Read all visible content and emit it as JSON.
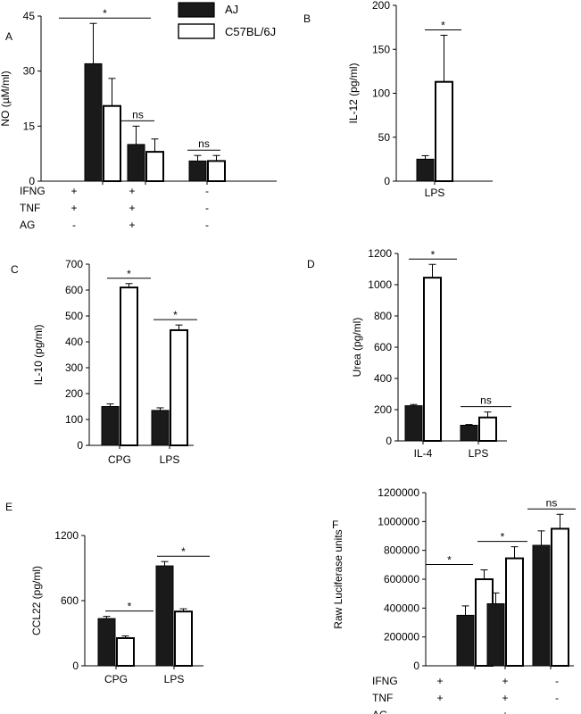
{
  "legend": {
    "items": [
      {
        "label": "AJ",
        "color": "#1a1a1a"
      },
      {
        "label": "C57BL/6J",
        "color": "#ffffff"
      }
    ]
  },
  "chart_data": [
    {
      "panel": "A",
      "type": "bar",
      "ylabel": "NO (µM/ml)",
      "ylim": [
        0,
        45
      ],
      "yticks": [
        "0",
        "15",
        "30",
        "45"
      ],
      "categories": [
        "",
        "",
        ""
      ],
      "series": [
        {
          "name": "AJ",
          "values": [
            32,
            10,
            5.5
          ],
          "errors": [
            11,
            5,
            1.5
          ]
        },
        {
          "name": "C57BL/6J",
          "values": [
            20.5,
            8,
            5.5
          ],
          "errors": [
            7.5,
            3.5,
            1.5
          ]
        }
      ],
      "significance": [
        "*",
        "ns",
        "ns"
      ],
      "treatment_rows": [
        {
          "label": "IFNG",
          "values": [
            "+",
            "+",
            "-"
          ]
        },
        {
          "label": "TNF",
          "values": [
            "+",
            "+",
            "-"
          ]
        },
        {
          "label": "AG",
          "values": [
            "-",
            "+",
            "-"
          ]
        }
      ]
    },
    {
      "panel": "B",
      "type": "bar",
      "ylabel": "IL-12 (pg/ml)",
      "ylim": [
        0,
        200
      ],
      "yticks": [
        "0",
        "50",
        "100",
        "150",
        "200"
      ],
      "categories": [
        "LPS"
      ],
      "series": [
        {
          "name": "AJ",
          "values": [
            25
          ],
          "errors": [
            4
          ]
        },
        {
          "name": "C57BL/6J",
          "values": [
            113
          ],
          "errors": [
            53
          ]
        }
      ],
      "significance": [
        "*"
      ]
    },
    {
      "panel": "C",
      "type": "bar",
      "ylabel": "IL-10 (pg/ml)",
      "ylim": [
        0,
        700
      ],
      "yticks": [
        "0",
        "100",
        "200",
        "300",
        "400",
        "500",
        "600",
        "700"
      ],
      "categories": [
        "CPG",
        "LPS"
      ],
      "series": [
        {
          "name": "AJ",
          "values": [
            150,
            135
          ],
          "errors": [
            10,
            10
          ]
        },
        {
          "name": "C57BL/6J",
          "values": [
            610,
            445
          ],
          "errors": [
            15,
            20
          ]
        }
      ],
      "significance": [
        "*",
        "*"
      ]
    },
    {
      "panel": "D",
      "type": "bar",
      "ylabel": "Urea (pg/ml)",
      "ylim": [
        0,
        1200
      ],
      "yticks": [
        "0",
        "200",
        "400",
        "600",
        "800",
        "1000",
        "1200"
      ],
      "categories": [
        "IL-4",
        "LPS"
      ],
      "series": [
        {
          "name": "AJ",
          "values": [
            225,
            100
          ],
          "errors": [
            8,
            5
          ]
        },
        {
          "name": "C57BL/6J",
          "values": [
            1045,
            150
          ],
          "errors": [
            85,
            35
          ]
        }
      ],
      "significance": [
        "*",
        "ns"
      ]
    },
    {
      "panel": "E",
      "type": "bar",
      "ylabel": "CCL22 (pg/ml)",
      "ylim": [
        0,
        1200
      ],
      "yticks": [
        "0",
        "600",
        "1200"
      ],
      "categories": [
        "CPG",
        "LPS"
      ],
      "series": [
        {
          "name": "AJ",
          "values": [
            435,
            920
          ],
          "errors": [
            20,
            40
          ]
        },
        {
          "name": "C57BL/6J",
          "values": [
            255,
            500
          ],
          "errors": [
            20,
            25
          ]
        }
      ],
      "significance": [
        "*",
        "*"
      ]
    },
    {
      "panel": "F",
      "type": "bar",
      "ylabel": "Raw Luciferase units",
      "ylim": [
        0,
        1200000
      ],
      "yticks": [
        "0",
        "200000",
        "400000",
        "600000",
        "800000",
        "1000000",
        "1200000"
      ],
      "categories": [
        "",
        "",
        ""
      ],
      "series": [
        {
          "name": "AJ",
          "values": [
            350000,
            430000,
            835000
          ],
          "errors": [
            65000,
            75000,
            100000
          ]
        },
        {
          "name": "C57BL/6J",
          "values": [
            600000,
            745000,
            950000
          ],
          "errors": [
            65000,
            80000,
            100000
          ]
        }
      ],
      "significance": [
        "*",
        "*",
        "ns"
      ],
      "treatment_rows": [
        {
          "label": "IFNG",
          "values": [
            "+",
            "+",
            "-"
          ]
        },
        {
          "label": "TNF",
          "values": [
            "+",
            "+",
            "-"
          ]
        },
        {
          "label": "AG",
          "values": [
            "-",
            "+",
            "-"
          ]
        }
      ]
    }
  ]
}
